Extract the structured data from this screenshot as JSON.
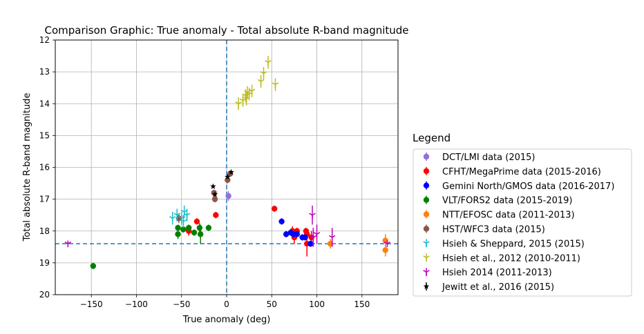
{
  "chart_data": {
    "type": "scatter",
    "title": "Comparison Graphic: True anomaly - Total absolute R-band magnitude",
    "xlabel": "True anomaly (deg)",
    "ylabel": "Total absolute R-band magnitude",
    "xlim": [
      -190,
      190
    ],
    "ylim": [
      20,
      12
    ],
    "y_inverted": true,
    "grid": true,
    "x_ticks": [
      -150,
      -100,
      -50,
      0,
      50,
      100,
      150
    ],
    "y_ticks": [
      12,
      13,
      14,
      15,
      16,
      17,
      18,
      19,
      20
    ],
    "reference_lines": {
      "vertical_x": 0,
      "horizontal_y": 18.4,
      "style": "dashed",
      "color": "#1f77b4"
    },
    "legend": {
      "title": "Legend",
      "position": "outside-right"
    },
    "series": [
      {
        "name": "DCT/LMI data (2015)",
        "color": "#9370db",
        "marker": "circle",
        "points": [
          [
            2,
            16.9,
            0.15
          ]
        ]
      },
      {
        "name": "CFHT/MegaPrime data (2015-2016)",
        "color": "#ff0000",
        "marker": "circle",
        "points": [
          [
            -42,
            18.0,
            0.15
          ],
          [
            -33,
            17.7,
            0.1
          ],
          [
            -12,
            17.5,
            0.1
          ],
          [
            53,
            17.3,
            0.1
          ],
          [
            73,
            18.0,
            0.15
          ],
          [
            75,
            18.2,
            0.2
          ],
          [
            78,
            18.0,
            0.1
          ],
          [
            88,
            18.0,
            0.1
          ],
          [
            89,
            18.1,
            0.1
          ],
          [
            89,
            18.4,
            0.4
          ],
          [
            94,
            18.2,
            0.2
          ]
        ]
      },
      {
        "name": "Gemini North/GMOS data (2016-2017)",
        "color": "#0000ff",
        "marker": "circle",
        "points": [
          [
            61,
            17.7,
            0.1
          ],
          [
            66,
            18.1,
            0.1
          ],
          [
            71,
            18.05,
            0.1
          ],
          [
            74,
            18.1,
            0.1
          ],
          [
            78,
            18.1,
            0.1
          ],
          [
            84,
            18.2,
            0.1
          ],
          [
            87,
            18.2,
            0.1
          ],
          [
            93,
            18.4,
            0.1
          ]
        ]
      },
      {
        "name": "VLT/FORS2 data (2015-2019)",
        "color": "#008000",
        "marker": "circle",
        "points": [
          [
            -148,
            19.1,
            0.1
          ],
          [
            -54,
            18.1,
            0.15
          ],
          [
            -54,
            17.9,
            0.1
          ],
          [
            -48,
            17.95,
            0.1
          ],
          [
            -42,
            17.9,
            0.1
          ],
          [
            -36,
            18.05,
            0.1
          ],
          [
            -30,
            17.9,
            0.15
          ],
          [
            -29,
            18.1,
            0.3
          ],
          [
            -20,
            17.9,
            0.1
          ]
        ]
      },
      {
        "name": "NTT/EFOSC data (2011-2013)",
        "color": "#ff7f0e",
        "marker": "circle",
        "points": [
          [
            115,
            18.4,
            0.15
          ],
          [
            176,
            18.3,
            0.2
          ],
          [
            176,
            18.6,
            0.2
          ]
        ]
      },
      {
        "name": "HST/WFC3 data (2015)",
        "color": "#8c564b",
        "marker": "circle",
        "points": [
          [
            -53,
            17.6,
            0.15
          ],
          [
            -14,
            16.8,
            0.1
          ],
          [
            -13,
            17.0,
            0.1
          ],
          [
            1,
            16.4,
            0.1
          ],
          [
            4,
            16.2,
            0.1
          ]
        ]
      },
      {
        "name": "Hsieh & Sheppard, 2015 (2015)",
        "color": "#17becf",
        "marker": "tri_down",
        "points": [
          [
            -60,
            17.6,
            0.2
          ],
          [
            -55,
            17.5,
            0.2
          ],
          [
            -50,
            17.6,
            0.2
          ],
          [
            -47,
            17.4,
            0.2
          ],
          [
            -44,
            17.5,
            0.2
          ],
          [
            -48,
            17.7,
            0.2
          ]
        ]
      },
      {
        "name": "Hsieh et al., 2012 (2010-2011)",
        "color": "#bcbd22",
        "marker": "tri_down",
        "points": [
          [
            13,
            14.0,
            0.2
          ],
          [
            18,
            13.9,
            0.2
          ],
          [
            21,
            13.75,
            0.2
          ],
          [
            22,
            13.85,
            0.2
          ],
          [
            23,
            13.65,
            0.2
          ],
          [
            25,
            13.7,
            0.2
          ],
          [
            28,
            13.6,
            0.2
          ],
          [
            38,
            13.3,
            0.2
          ],
          [
            41,
            13.05,
            0.2
          ],
          [
            46,
            12.7,
            0.2
          ],
          [
            54,
            13.4,
            0.2
          ]
        ]
      },
      {
        "name": "Hsieh 2014 (2011-2013)",
        "color": "#c000c0",
        "marker": "tri_down",
        "points": [
          [
            -176,
            18.4,
            0.1
          ],
          [
            95,
            17.5,
            0.3
          ],
          [
            96,
            18.2,
            0.3
          ],
          [
            100,
            18.1,
            0.3
          ],
          [
            117,
            18.2,
            0.3
          ],
          [
            178,
            18.4,
            0.1
          ]
        ]
      },
      {
        "name": "Jewitt et al., 2016 (2015)",
        "color": "#000000",
        "marker": "star",
        "points": [
          [
            -15,
            16.6,
            0.05
          ],
          [
            -13,
            16.85,
            0.05
          ],
          [
            1,
            16.3,
            0.05
          ],
          [
            5,
            16.15,
            0.05
          ]
        ]
      }
    ]
  }
}
